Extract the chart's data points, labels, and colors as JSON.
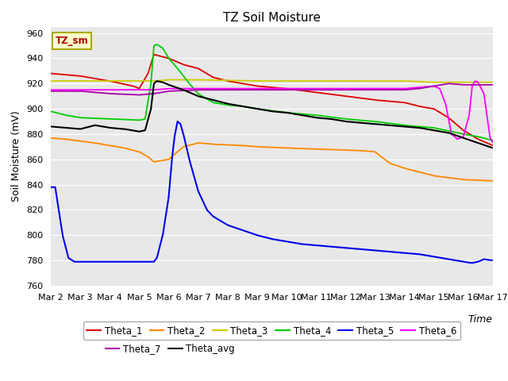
{
  "title": "TZ Soil Moisture",
  "ylabel": "Soil Moisture (mV)",
  "xlabel": "Time",
  "ylim": [
    760,
    965
  ],
  "yticks": [
    760,
    780,
    800,
    820,
    840,
    860,
    880,
    900,
    920,
    940,
    960
  ],
  "xtick_labels": [
    "Mar 2",
    "Mar 3",
    "Mar 4",
    "Mar 5",
    "Mar 6",
    "Mar 7",
    "Mar 8",
    "Mar 9",
    "Mar 10",
    "Mar 11",
    "Mar 12",
    "Mar 13",
    "Mar 14",
    "Mar 15",
    "Mar 16",
    "Mar 17"
  ],
  "background_color": "#e8e8e8",
  "legend_box_color": "#ffffcc",
  "legend_box_text": "TZ_sm",
  "series_colors": {
    "Theta_1": "#dd0000",
    "Theta_2": "#ff8800",
    "Theta_3": "#cccc00",
    "Theta_4": "#00cc00",
    "Theta_5": "#0000ee",
    "Theta_6": "#ff00ff",
    "Theta_7": "#aa00aa",
    "Theta_avg": "#000000"
  }
}
